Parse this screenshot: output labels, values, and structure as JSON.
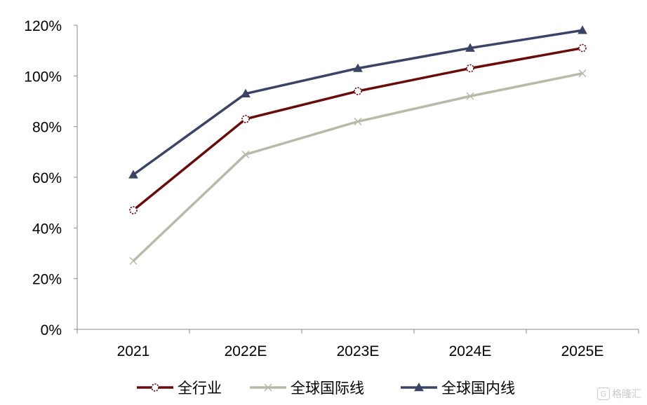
{
  "chart_data": {
    "type": "line",
    "categories": [
      "2021",
      "2022E",
      "2023E",
      "2024E",
      "2025E"
    ],
    "series": [
      {
        "name": "全行业",
        "values": [
          47,
          83,
          94,
          103,
          111
        ],
        "color": "#6b0a0a",
        "marker": "circle-hollow"
      },
      {
        "name": "全球国际线",
        "values": [
          27,
          69,
          82,
          92,
          101
        ],
        "color": "#b9b9a9",
        "marker": "x"
      },
      {
        "name": "全球国内线",
        "values": [
          61,
          93,
          103,
          111,
          118
        ],
        "color": "#3c4466",
        "marker": "triangle"
      }
    ],
    "y_ticks": [
      "0%",
      "20%",
      "40%",
      "60%",
      "80%",
      "100%",
      "120%"
    ],
    "ylim": [
      0,
      120
    ],
    "grid": false,
    "legend_position": "bottom"
  },
  "watermark": {
    "icon": "gelonghui-logo-icon",
    "icon_glyph": "G",
    "text": "格隆汇"
  }
}
